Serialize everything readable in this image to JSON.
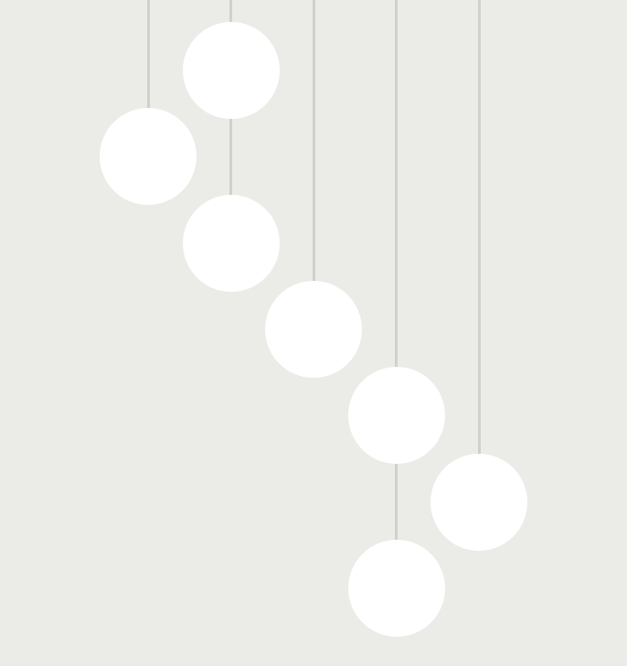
{
  "scene": {
    "background_color": "#ebebe7",
    "ball_color": "#ffffff",
    "cord_color": "#d0d0cc",
    "cord_count": 5,
    "ball_count": 7
  }
}
